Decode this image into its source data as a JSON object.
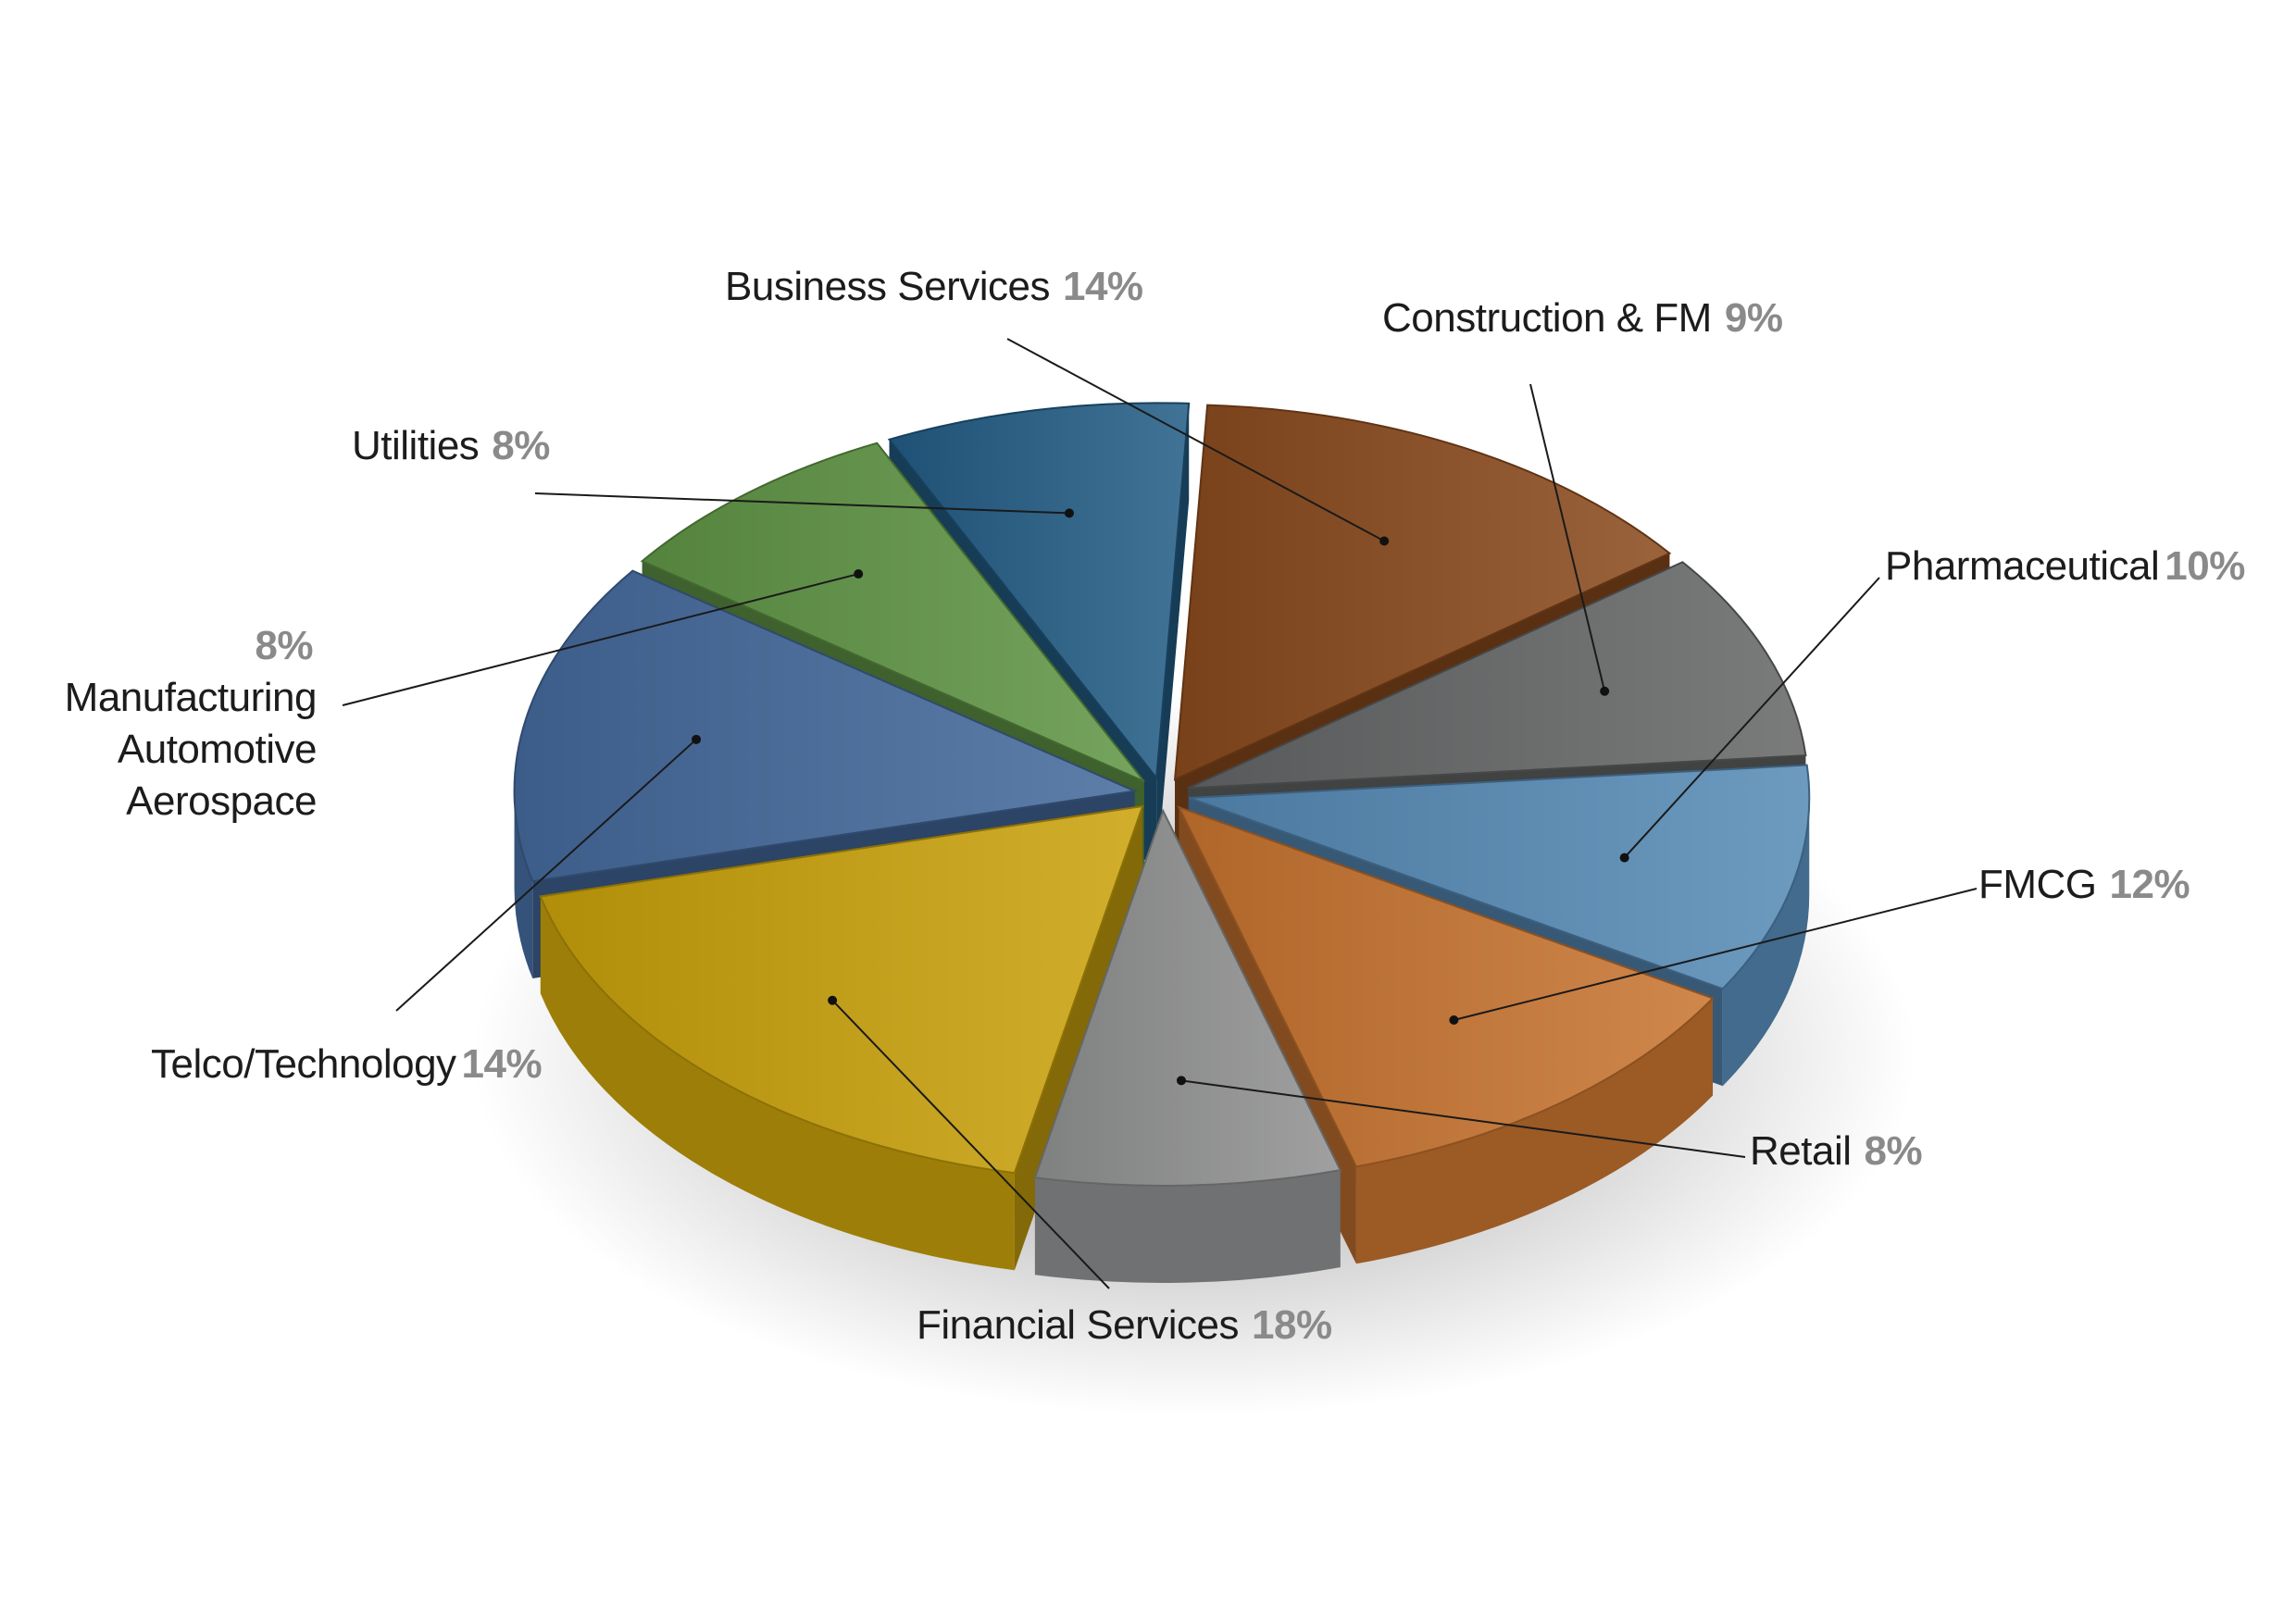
{
  "chart_data": {
    "type": "pie",
    "style": "3d-exploded",
    "slices": [
      {
        "lines": [
          "Business Services"
        ],
        "pct_label": "14%",
        "value": 14,
        "color": "#8a4a1c"
      },
      {
        "lines": [
          "Construction & FM"
        ],
        "pct_label": "9%",
        "value": 9,
        "color": "#646566"
      },
      {
        "lines": [
          "Pharmaceutical"
        ],
        "pct_label": "10%",
        "value": 10,
        "color": "#5589b5"
      },
      {
        "lines": [
          "FMCG"
        ],
        "pct_label": "12%",
        "value": 12,
        "color": "#c8742f"
      },
      {
        "lines": [
          "Retail"
        ],
        "pct_label": "8%",
        "value": 8,
        "color": "#909192"
      },
      {
        "lines": [
          "Financial Services"
        ],
        "pct_label": "18%",
        "value": 18,
        "color": "#c9a10a"
      },
      {
        "lines": [
          "Telco/Technology"
        ],
        "pct_label": "14%",
        "value": 14,
        "color": "#44699c"
      },
      {
        "lines": [
          "Manufacturing",
          "Automotive",
          "Aerospace"
        ],
        "pct_label": "8%",
        "value": 8,
        "color": "#5f9545"
      },
      {
        "lines": [
          "Utilities"
        ],
        "pct_label": "8%",
        "value": 8,
        "color": "#225c85"
      }
    ]
  }
}
